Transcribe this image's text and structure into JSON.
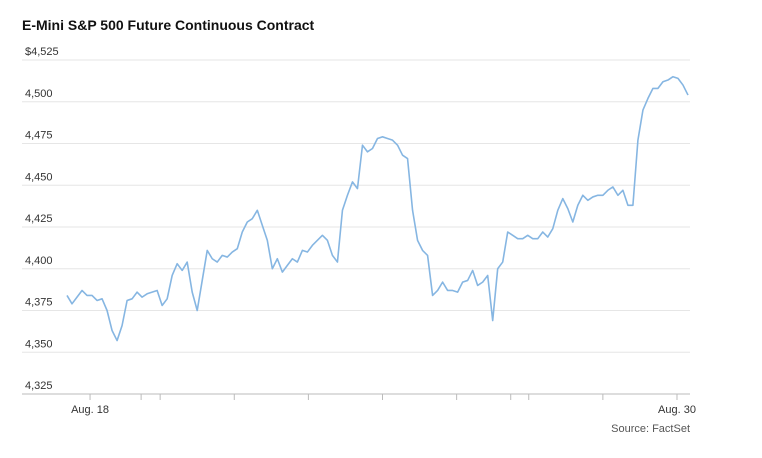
{
  "chart_data": {
    "type": "line",
    "title": "E-Mini S&P 500 Future Continuous Contract",
    "source": "Source: FactSet",
    "series": [
      {
        "name": "E-Mini S&P 500",
        "color": "#86b6e2",
        "values": [
          4384,
          4379,
          4383,
          4387,
          4384,
          4384,
          4381,
          4382,
          4375,
          4363,
          4357,
          4366,
          4381,
          4382,
          4386,
          4383,
          4385,
          4386,
          4387,
          4378,
          4382,
          4396,
          4403,
          4399,
          4404,
          4386,
          4375,
          4393,
          4411,
          4406,
          4404,
          4408,
          4407,
          4410,
          4412,
          4422,
          4428,
          4430,
          4435,
          4426,
          4417,
          4400,
          4406,
          4398,
          4402,
          4406,
          4404,
          4411,
          4410,
          4414,
          4417,
          4420,
          4417,
          4408,
          4404,
          4435,
          4444,
          4452,
          4448,
          4474,
          4470,
          4472,
          4478,
          4479,
          4478,
          4477,
          4474,
          4468,
          4466,
          4435,
          4417,
          4411,
          4408,
          4384,
          4387,
          4392,
          4387,
          4387,
          4386,
          4392,
          4393,
          4399,
          4390,
          4392,
          4396,
          4369,
          4400,
          4404,
          4422,
          4420,
          4418,
          4418,
          4420,
          4418,
          4418,
          4422,
          4419,
          4424,
          4435,
          4442,
          4436,
          4428,
          4438,
          4444,
          4441,
          4443,
          4444,
          4444,
          4447,
          4449,
          4444,
          4447,
          4438,
          4438,
          4477,
          4495,
          4502,
          4508,
          4508,
          4512,
          4513,
          4515,
          4514,
          4510,
          4504
        ]
      }
    ],
    "xlim": [
      0,
      124
    ],
    "xticks": [
      {
        "value": 4.6,
        "label": "Aug. 18"
      },
      {
        "value": 121.8,
        "label": "Aug. 30"
      }
    ],
    "xminor_ticks": [
      14.8,
      18.6,
      33.4,
      48.2,
      63,
      77.8,
      88.6,
      92.2,
      107
    ],
    "ylim": [
      4325,
      4525
    ],
    "yticks": [
      {
        "value": 4525,
        "label": "$4,525"
      },
      {
        "value": 4500,
        "label": "4,500"
      },
      {
        "value": 4475,
        "label": "4,475"
      },
      {
        "value": 4450,
        "label": "4,450"
      },
      {
        "value": 4425,
        "label": "4,425"
      },
      {
        "value": 4400,
        "label": "4,400"
      },
      {
        "value": 4375,
        "label": "4,375"
      },
      {
        "value": 4350,
        "label": "4,350"
      },
      {
        "value": 4325,
        "label": "4,325"
      }
    ],
    "grid": true
  }
}
